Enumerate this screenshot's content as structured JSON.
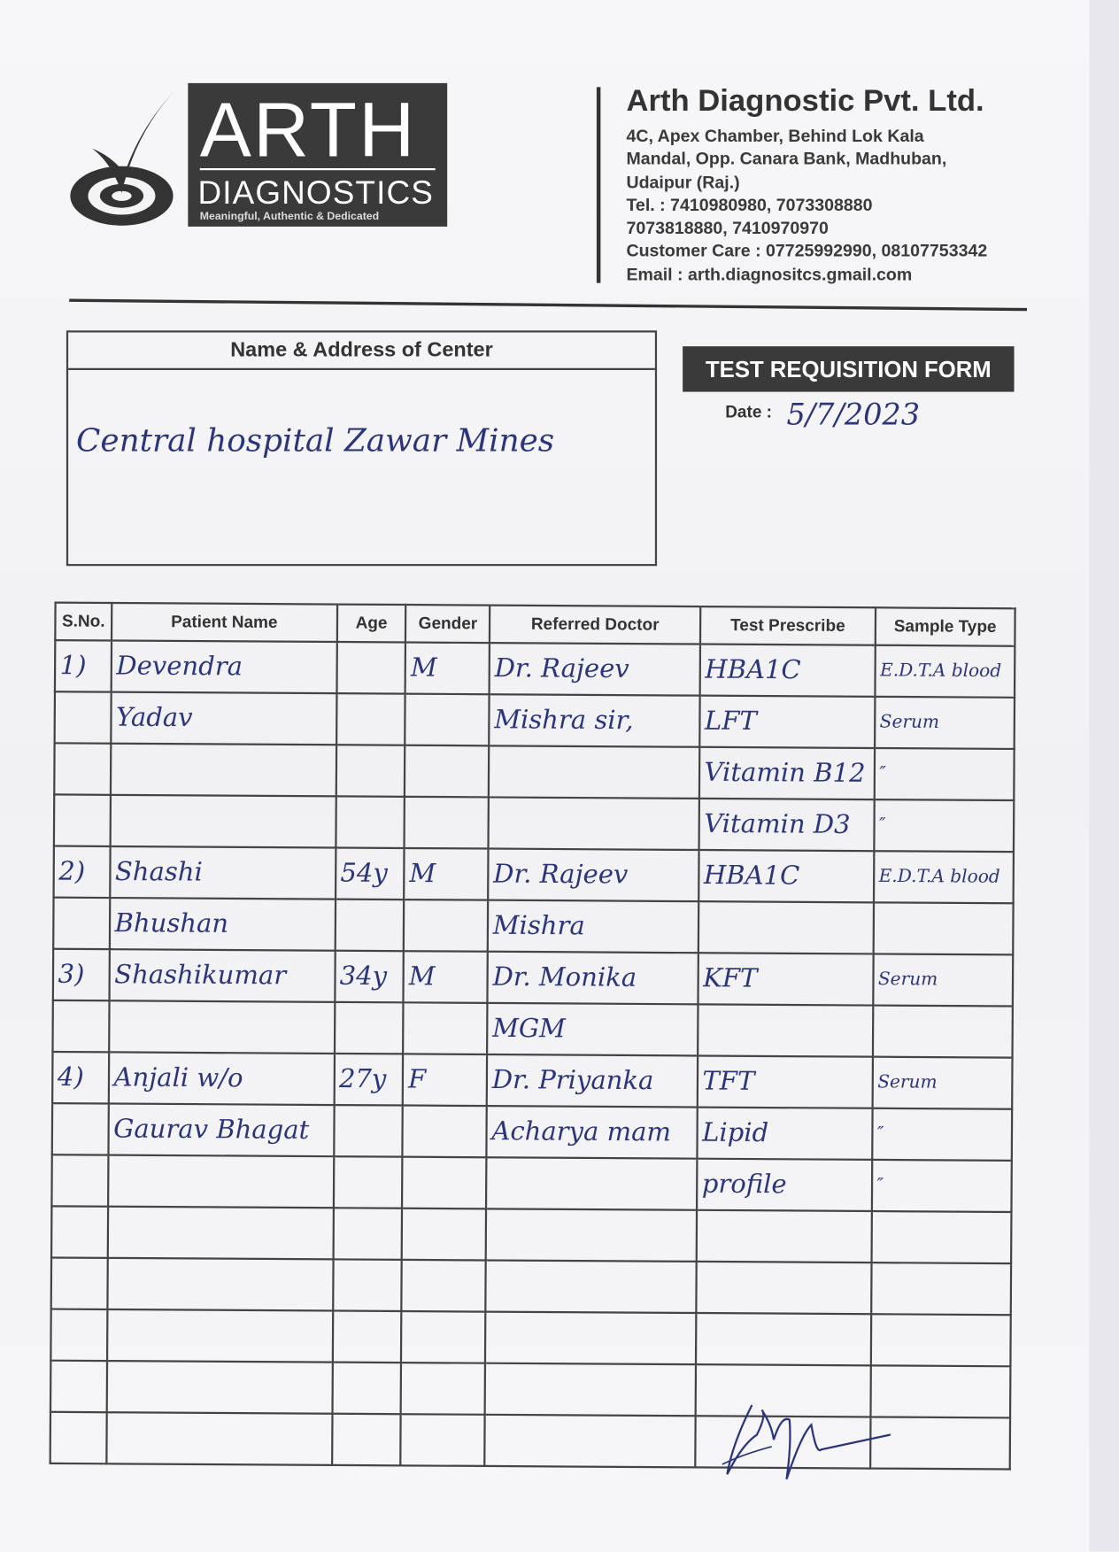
{
  "logo": {
    "word": "ARTH",
    "sub": "DIAGNOSTICS",
    "tagline": "Meaningful, Authentic & Dedicated"
  },
  "company": {
    "name": "Arth Diagnostic Pvt. Ltd.",
    "address_lines": [
      "4C, Apex Chamber, Behind Lok Kala",
      "Mandal, Opp. Canara Bank, Madhuban,",
      "Udaipur (Raj.)"
    ],
    "tel_lines": [
      "Tel. : 7410980980, 7073308880",
      "7073818880, 7410970970"
    ],
    "customer_care": "Customer Care : 07725992990, 08107753342",
    "email": "Email : arth.diagnositcs.gmail.com"
  },
  "center": {
    "title": "Name & Address of Center",
    "value": "Central hospital Zawar Mines"
  },
  "form": {
    "title": "TEST REQUISITION FORM",
    "date_label": "Date :",
    "date_value": "5/7/2023"
  },
  "table": {
    "headers": [
      "S.No.",
      "Patient Name",
      "Age",
      "Gender",
      "Referred Doctor",
      "Test Prescribe",
      "Sample Type"
    ],
    "rows": [
      [
        "1)",
        "Devendra",
        "",
        "M",
        "Dr. Rajeev",
        "HBA1C",
        "E.D.T.A blood"
      ],
      [
        "",
        "Yadav",
        "",
        "",
        "Mishra sir,",
        "LFT",
        "Serum"
      ],
      [
        "",
        "",
        "",
        "",
        "",
        "Vitamin B12",
        "″"
      ],
      [
        "",
        "",
        "",
        "",
        "",
        "Vitamin D3",
        "″"
      ],
      [
        "2)",
        "Shashi",
        "54y",
        "M",
        "Dr. Rajeev",
        "HBA1C",
        "E.D.T.A blood"
      ],
      [
        "",
        "Bhushan",
        "",
        "",
        "Mishra",
        "",
        ""
      ],
      [
        "3)",
        "Shashikumar",
        "34y",
        "M",
        "Dr. Monika",
        "KFT",
        "Serum"
      ],
      [
        "",
        "",
        "",
        "",
        "MGM",
        "",
        ""
      ],
      [
        "4)",
        "Anjali w/o",
        "27y",
        "F",
        "Dr. Priyanka",
        "TFT",
        "Serum"
      ],
      [
        "",
        "Gaurav Bhagat",
        "",
        "",
        "Acharya mam",
        "Lipid",
        "″"
      ],
      [
        "",
        "",
        "",
        "",
        "",
        "profile",
        "″"
      ],
      [
        "",
        "",
        "",
        "",
        "",
        "",
        ""
      ],
      [
        "",
        "",
        "",
        "",
        "",
        "",
        ""
      ],
      [
        "",
        "",
        "",
        "",
        "",
        "",
        ""
      ],
      [
        "",
        "",
        "",
        "",
        "",
        "",
        ""
      ],
      [
        "",
        "",
        "",
        "",
        "",
        "",
        ""
      ]
    ]
  },
  "colors": {
    "ink": "#2b3578",
    "print": "#333333",
    "banner": "#3a3a3a"
  }
}
